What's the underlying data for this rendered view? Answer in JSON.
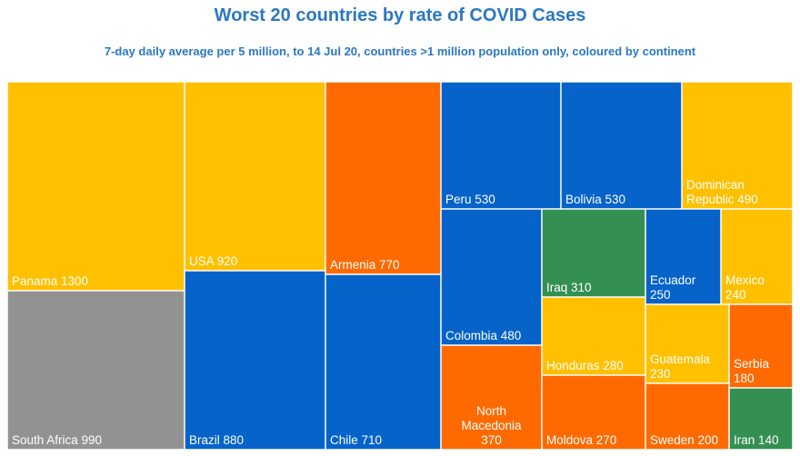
{
  "chart_data": {
    "type": "treemap",
    "title": "Worst 20 countries by rate of COVID Cases",
    "subtitle": "7-day daily average per 5 million, to 14 Jul 20, countries >1 million population only, coloured by continent",
    "colors": {
      "North America": "#ffc000",
      "South America": "#0563c9",
      "Africa": "#929292",
      "Asia": "#348f53",
      "Europe": "#fe6a00"
    },
    "items": [
      {
        "name": "Panama",
        "value": 1300,
        "continent": "North America",
        "label_lines": [
          "Panama 1300"
        ]
      },
      {
        "name": "South Africa",
        "value": 990,
        "continent": "Africa",
        "label_lines": [
          "South Africa 990"
        ]
      },
      {
        "name": "USA",
        "value": 920,
        "continent": "North America",
        "label_lines": [
          "USA 920"
        ]
      },
      {
        "name": "Brazil",
        "value": 880,
        "continent": "South America",
        "label_lines": [
          "Brazil 880"
        ]
      },
      {
        "name": "Armenia",
        "value": 770,
        "continent": "Europe",
        "label_lines": [
          "Armenia 770"
        ]
      },
      {
        "name": "Chile",
        "value": 710,
        "continent": "South America",
        "label_lines": [
          "Chile 710"
        ]
      },
      {
        "name": "Peru",
        "value": 530,
        "continent": "South America",
        "label_lines": [
          "Peru 530"
        ]
      },
      {
        "name": "Bolivia",
        "value": 530,
        "continent": "South America",
        "label_lines": [
          "Bolivia 530"
        ]
      },
      {
        "name": "Dominican Republic",
        "value": 490,
        "continent": "North America",
        "label_lines": [
          "Dominican",
          "Republic 490"
        ]
      },
      {
        "name": "Colombia",
        "value": 480,
        "continent": "South America",
        "label_lines": [
          "Colombia 480"
        ]
      },
      {
        "name": "North Macedonia",
        "value": 370,
        "continent": "Europe",
        "label_lines": [
          "North",
          "Macedonia",
          "370"
        ]
      },
      {
        "name": "Iraq",
        "value": 310,
        "continent": "Asia",
        "label_lines": [
          "Iraq 310"
        ]
      },
      {
        "name": "Honduras",
        "value": 280,
        "continent": "North America",
        "label_lines": [
          "Honduras 280"
        ]
      },
      {
        "name": "Moldova",
        "value": 270,
        "continent": "Europe",
        "label_lines": [
          "Moldova 270"
        ]
      },
      {
        "name": "Ecuador",
        "value": 250,
        "continent": "South America",
        "label_lines": [
          "Ecuador",
          "250"
        ]
      },
      {
        "name": "Mexico",
        "value": 240,
        "continent": "North America",
        "label_lines": [
          "Mexico",
          "240"
        ]
      },
      {
        "name": "Guatemala",
        "value": 230,
        "continent": "North America",
        "label_lines": [
          "Guatemala",
          "230"
        ]
      },
      {
        "name": "Sweden",
        "value": 200,
        "continent": "Europe",
        "label_lines": [
          "Sweden 200"
        ]
      },
      {
        "name": "Serbia",
        "value": 180,
        "continent": "Europe",
        "label_lines": [
          "Serbia",
          "180"
        ]
      },
      {
        "name": "Iran",
        "value": 140,
        "continent": "Asia",
        "label_lines": [
          "Iran 140"
        ]
      }
    ]
  }
}
